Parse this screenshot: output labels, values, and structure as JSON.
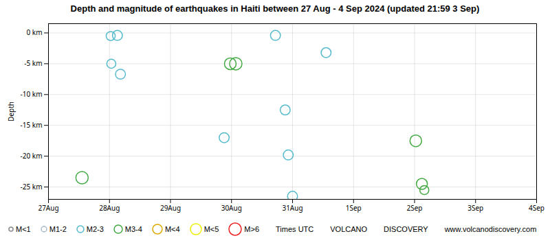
{
  "chart_data": {
    "type": "scatter",
    "title": "Depth and magnitude of earthquakes in Haiti between 27 Aug - 4 Sep 2024 (updated 21:59 3 Sep)",
    "y_label": "Depth",
    "xlim": [
      0,
      8
    ],
    "xticks": [
      {
        "value": 0,
        "label": "27Aug"
      },
      {
        "value": 1,
        "label": "28Aug"
      },
      {
        "value": 2,
        "label": "29Aug"
      },
      {
        "value": 3,
        "label": "30Aug"
      },
      {
        "value": 4,
        "label": "31Aug"
      },
      {
        "value": 5,
        "label": "1Sep"
      },
      {
        "value": 6,
        "label": "2Sep"
      },
      {
        "value": 7,
        "label": "3Sep"
      },
      {
        "value": 8,
        "label": "4Sep"
      }
    ],
    "ylim": [
      -27,
      1.5
    ],
    "yticks": [
      {
        "value": 0,
        "label": "0 km"
      },
      {
        "value": -5,
        "label": "-5 km"
      },
      {
        "value": -10,
        "label": "-10 km"
      },
      {
        "value": -15,
        "label": "-15 km"
      },
      {
        "value": -20,
        "label": "-20 km"
      },
      {
        "value": -25,
        "label": "-25 km"
      }
    ],
    "grid": true,
    "legend": "bottom",
    "marker": "circle",
    "series": [
      {
        "name": "M<1",
        "color": "#888888",
        "x": [],
        "values": [],
        "magnitudes": []
      },
      {
        "name": "M1-2",
        "color": "#aabbcc",
        "x": [],
        "values": [],
        "magnitudes": []
      },
      {
        "name": "M2-3",
        "color": "#55bbcc",
        "x": [
          1.02,
          1.13,
          1.03,
          1.18,
          2.88,
          3.72,
          3.88,
          3.93,
          4.55,
          4.0
        ],
        "values": [
          -0.5,
          -0.4,
          -5.0,
          -6.7,
          -17.0,
          -0.4,
          -12.5,
          -19.8,
          -3.2,
          -26.5
        ],
        "magnitudes": [
          1.5,
          1.8,
          1.5,
          1.8,
          1.8,
          1.8,
          1.8,
          1.8,
          1.8,
          1.8
        ]
      },
      {
        "name": "M3-4",
        "color": "#44aa44",
        "x": [
          0.55,
          2.98,
          3.07,
          6.02,
          6.12,
          6.16
        ],
        "values": [
          -23.5,
          -5.0,
          -5.0,
          -17.5,
          -24.5,
          -25.5
        ],
        "magnitudes": [
          2.8,
          2.5,
          2.8,
          2.5,
          2.2,
          1.5
        ]
      },
      {
        "name": "M<4",
        "color": "#ddaa00",
        "x": [],
        "values": [],
        "magnitudes": []
      },
      {
        "name": "M<5",
        "color": "#eeee00",
        "x": [],
        "values": [],
        "magnitudes": []
      },
      {
        "name": "M>6",
        "color": "#ee2222",
        "x": [],
        "values": [],
        "magnitudes": []
      }
    ],
    "annotations": [
      "Times UTC",
      "VOLCANO",
      "DISCOVERY",
      "www.volcanodiscovery.com"
    ]
  }
}
